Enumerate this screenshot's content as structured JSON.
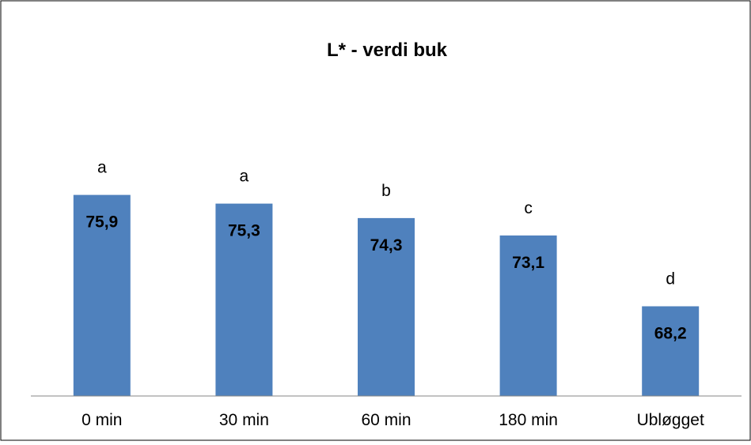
{
  "chart_data": {
    "type": "bar",
    "title": "L* - verdi buk",
    "xlabel": "",
    "ylabel": "",
    "categories": [
      "0 min",
      "30 min",
      "60 min",
      "180 min",
      "Ubløgget"
    ],
    "values": [
      75.9,
      75.3,
      74.3,
      73.1,
      68.2
    ],
    "value_labels": [
      "75,9",
      "75,3",
      "74,3",
      "73,1",
      "68,2"
    ],
    "significance_letters": [
      "a",
      "a",
      "b",
      "c",
      "d"
    ],
    "ylim": [
      62.0,
      78.3
    ],
    "grid": false,
    "legend": "none",
    "bar_color": "#4F81BD"
  }
}
